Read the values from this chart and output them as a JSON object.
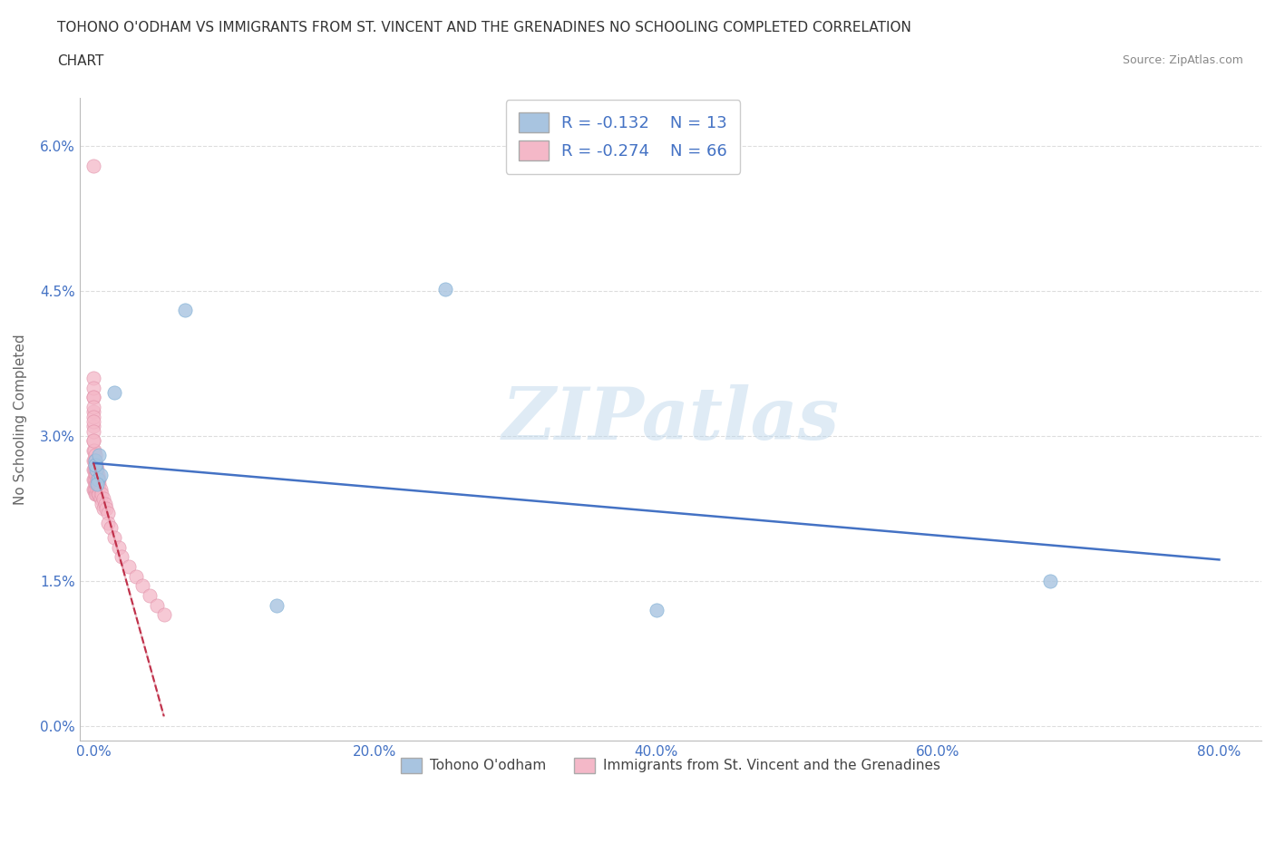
{
  "title_line1": "TOHONO O'ODHAM VS IMMIGRANTS FROM ST. VINCENT AND THE GRENADINES NO SCHOOLING COMPLETED CORRELATION",
  "title_line2": "CHART",
  "source": "Source: ZipAtlas.com",
  "ylabel": "No Schooling Completed",
  "series1_name": "Tohono O'odham",
  "series1_color": "#a8c4e0",
  "series1_edge_color": "#7aadd4",
  "series1_line_color": "#4472c4",
  "series1_R": -0.132,
  "series1_N": 13,
  "series2_name": "Immigrants from St. Vincent and the Grenadines",
  "series2_color": "#f4b8c8",
  "series2_edge_color": "#e090a8",
  "series2_line_color": "#c0304a",
  "series2_R": -0.274,
  "series2_N": 66,
  "xlim": [
    -1.0,
    83
  ],
  "ylim": [
    -0.15,
    6.5
  ],
  "xticks": [
    0,
    20,
    40,
    60,
    80
  ],
  "yticks": [
    0.0,
    1.5,
    3.0,
    4.5,
    6.0
  ],
  "xticklabels": [
    "0.0%",
    "20.0%",
    "40.0%",
    "60.0%",
    "80.0%"
  ],
  "yticklabels": [
    "0.0%",
    "1.5%",
    "3.0%",
    "4.5%",
    "6.0%"
  ],
  "watermark": "ZIPatlas",
  "background_color": "#ffffff",
  "grid_color": "#dddddd",
  "s1_x": [
    0.1,
    0.2,
    0.3,
    0.5,
    1.5,
    6.5,
    40.0,
    68.0,
    0.15,
    0.25,
    0.4,
    13.0,
    25.0
  ],
  "s1_y": [
    2.75,
    2.65,
    2.55,
    2.6,
    3.45,
    4.3,
    1.2,
    1.5,
    2.7,
    2.5,
    2.8,
    1.25,
    4.52
  ],
  "s2_x": [
    0.0,
    0.0,
    0.0,
    0.0,
    0.0,
    0.0,
    0.0,
    0.0,
    0.0,
    0.0,
    0.05,
    0.05,
    0.05,
    0.05,
    0.05,
    0.1,
    0.1,
    0.1,
    0.1,
    0.1,
    0.15,
    0.15,
    0.15,
    0.15,
    0.2,
    0.2,
    0.2,
    0.2,
    0.25,
    0.25,
    0.25,
    0.3,
    0.3,
    0.3,
    0.35,
    0.35,
    0.4,
    0.4,
    0.5,
    0.5,
    0.6,
    0.6,
    0.7,
    0.7,
    0.8,
    0.9,
    1.0,
    1.0,
    1.2,
    1.5,
    1.8,
    2.0,
    2.5,
    3.0,
    3.5,
    4.0,
    4.5,
    5.0,
    0.0,
    0.0,
    0.0,
    0.0,
    0.0,
    0.0,
    0.0,
    0.0
  ],
  "s2_y": [
    5.8,
    3.4,
    3.25,
    3.1,
    2.95,
    2.85,
    2.75,
    2.65,
    2.55,
    2.45,
    2.85,
    2.75,
    2.65,
    2.55,
    2.45,
    2.8,
    2.7,
    2.6,
    2.5,
    2.4,
    2.75,
    2.65,
    2.55,
    2.45,
    2.7,
    2.6,
    2.5,
    2.4,
    2.65,
    2.55,
    2.45,
    2.6,
    2.5,
    2.4,
    2.55,
    2.45,
    2.5,
    2.4,
    2.45,
    2.35,
    2.4,
    2.3,
    2.35,
    2.25,
    2.3,
    2.25,
    2.2,
    2.1,
    2.05,
    1.95,
    1.85,
    1.75,
    1.65,
    1.55,
    1.45,
    1.35,
    1.25,
    1.15,
    3.6,
    3.5,
    3.4,
    3.3,
    3.2,
    3.15,
    3.05,
    2.95
  ],
  "s1_trend_x": [
    0,
    80
  ],
  "s1_trend_y": [
    2.72,
    1.72
  ],
  "s2_trend_x0": 0.0,
  "s2_trend_x1": 5.0,
  "s2_trend_y0": 2.72,
  "s2_trend_y1": 0.1
}
